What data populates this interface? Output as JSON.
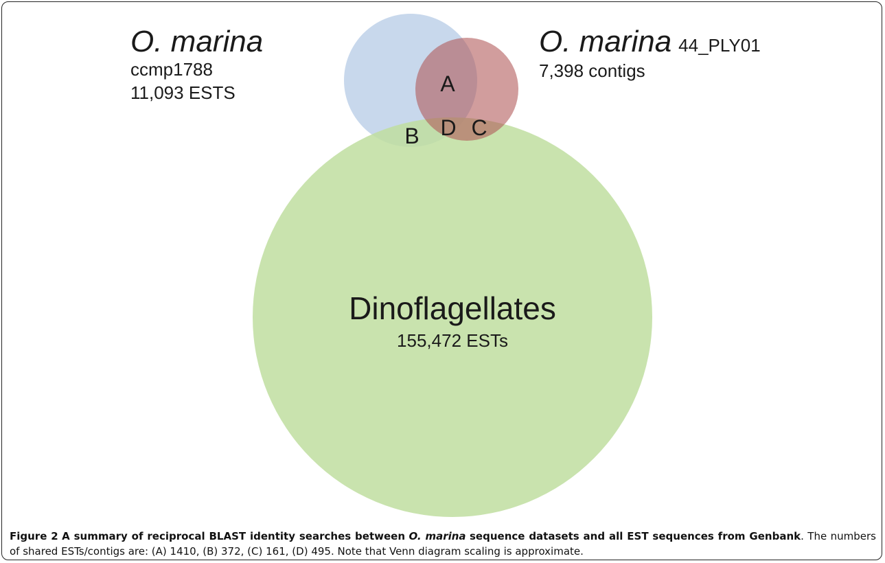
{
  "sets": [
    {
      "name": "O. marina",
      "strain": "ccmp1788",
      "count": "11,093 ESTS"
    },
    {
      "name": "O. marina",
      "strain": "44_PLY01",
      "count": "7,398 contigs"
    },
    {
      "name": "Dinoflagellates",
      "count": "155,472 ESTs"
    }
  ],
  "regions": [
    "A",
    "B",
    "C",
    "D"
  ],
  "caption": {
    "label": "Figure 2",
    "title_start": "A summary of reciprocal BLAST identity searches between",
    "title_italic": "O. marina",
    "title_end": "sequence datasets and all EST sequences from Genbank",
    "body": ". The numbers of shared ESTs/contigs are: (A) 1410, (B) 372, (C) 161, (D) 495. Note that Venn diagram scaling is approximate."
  }
}
